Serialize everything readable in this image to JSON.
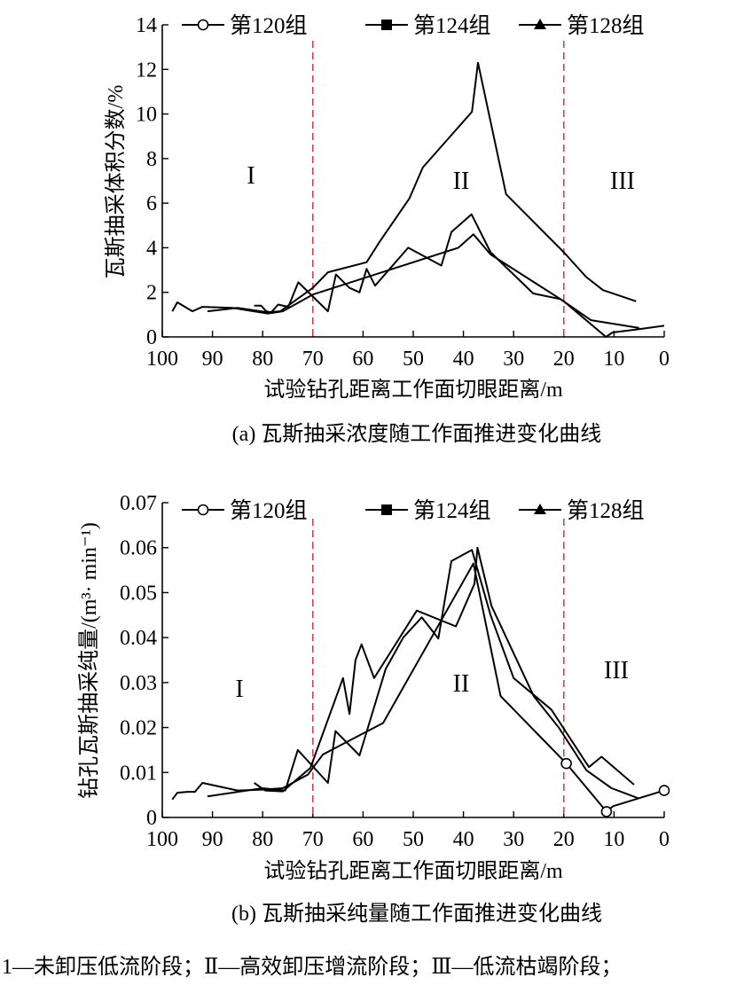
{
  "chart_data": [
    {
      "type": "line",
      "caption": "(a)  瓦斯抽采浓度随工作面推进变化曲线",
      "xlabel": "试验钻孔距离工作面切眼距离/m",
      "ylabel": "瓦斯抽采体积分数/%",
      "xlim": [
        100,
        0
      ],
      "ylim": [
        0,
        14
      ],
      "xticks": [
        "100",
        "90",
        "80",
        "70",
        "60",
        "50",
        "40",
        "30",
        "20",
        "10",
        "0"
      ],
      "yticks": [
        "0",
        "2",
        "4",
        "6",
        "8",
        "10",
        "12",
        "14"
      ],
      "grid": false,
      "legend_position": "top",
      "stage_lines_x": [
        70,
        20
      ],
      "stage_line_color": "#d9363e",
      "stage_labels": [
        "I",
        "II",
        "III"
      ],
      "series": [
        {
          "name": "第120组",
          "marker": "circle",
          "points": [
            [
              98,
              1.15
            ],
            [
              97,
              1.55
            ],
            [
              94,
              1.15
            ],
            [
              92,
              1.35
            ],
            [
              86,
              1.3
            ],
            [
              79,
              1.05
            ],
            [
              76,
              1.15
            ],
            [
              70,
              1.9
            ],
            [
              41,
              4.0
            ],
            [
              38,
              4.6
            ],
            [
              34.6,
              3.7
            ],
            [
              20,
              1.6
            ],
            [
              11.6,
              0
            ],
            [
              10.3,
              0.2
            ],
            [
              5,
              0.35
            ],
            [
              0,
              0.5
            ]
          ]
        },
        {
          "name": "第124组",
          "marker": "square",
          "points": [
            [
              91,
              1.15
            ],
            [
              85,
              1.3
            ],
            [
              79,
              1.1
            ],
            [
              76.5,
              1.15
            ],
            [
              70,
              2.2
            ],
            [
              67,
              2.9
            ],
            [
              59.3,
              3.35
            ],
            [
              56.6,
              4.3
            ],
            [
              50.8,
              6.2
            ],
            [
              48.1,
              7.6
            ],
            [
              38.3,
              10.1
            ],
            [
              37.1,
              12.3
            ],
            [
              31.5,
              6.4
            ],
            [
              20,
              3.8
            ],
            [
              15.6,
              2.7
            ],
            [
              12.2,
              2.1
            ],
            [
              5.6,
              1.6
            ]
          ]
        },
        {
          "name": "第128组",
          "marker": "triangle",
          "points": [
            [
              81.7,
              1.4
            ],
            [
              80.3,
              1.4
            ],
            [
              79.3,
              1.15
            ],
            [
              78.3,
              1.1
            ],
            [
              76.9,
              1.45
            ],
            [
              74.9,
              1.35
            ],
            [
              72.9,
              2.45
            ],
            [
              67,
              1.15
            ],
            [
              65.4,
              2.8
            ],
            [
              62.7,
              2.2
            ],
            [
              60.7,
              2.0
            ],
            [
              59.3,
              3.05
            ],
            [
              57.6,
              2.3
            ],
            [
              51,
              4.0
            ],
            [
              44.4,
              3.2
            ],
            [
              42.4,
              4.7
            ],
            [
              38.4,
              5.5
            ],
            [
              34.6,
              3.8
            ],
            [
              26.1,
              1.95
            ],
            [
              20.7,
              1.7
            ],
            [
              14.6,
              0.75
            ],
            [
              5,
              0.4
            ]
          ]
        }
      ]
    },
    {
      "type": "line",
      "caption": "(b) 瓦斯抽采纯量随工作面推进变化曲线",
      "xlabel": "试验钻孔距离工作面切眼距离/m",
      "ylabel": "钻孔瓦斯抽采纯量/(m³· min⁻¹)",
      "xlim": [
        100,
        0
      ],
      "ylim": [
        0,
        0.07
      ],
      "xticks": [
        "100",
        "90",
        "80",
        "70",
        "60",
        "50",
        "40",
        "30",
        "20",
        "10",
        "0"
      ],
      "yticks": [
        "0",
        "0.01",
        "0.02",
        "0.03",
        "0.04",
        "0.05",
        "0.06",
        "0.07"
      ],
      "grid": false,
      "legend_position": "top",
      "stage_lines_x": [
        70,
        20
      ],
      "stage_line_color": "#d9363e",
      "stage_labels": [
        "I",
        "II",
        "III"
      ],
      "series": [
        {
          "name": "第120组",
          "marker": "circle",
          "marked_x": [
            19.5,
            11.5,
            0
          ],
          "points": [
            [
              98,
              0.004
            ],
            [
              97,
              0.0055
            ],
            [
              95,
              0.0057
            ],
            [
              93.5,
              0.0057
            ],
            [
              92,
              0.0077
            ],
            [
              85,
              0.006
            ],
            [
              80,
              0.0062
            ],
            [
              76,
              0.0065
            ],
            [
              71,
              0.0095
            ],
            [
              68,
              0.014
            ],
            [
              56,
              0.021
            ],
            [
              38,
              0.0565
            ],
            [
              32.6,
              0.027
            ],
            [
              19.5,
              0.012
            ],
            [
              11.5,
              0.0013
            ],
            [
              10.2,
              0.0025
            ],
            [
              0,
              0.006
            ]
          ]
        },
        {
          "name": "第124组",
          "marker": "square",
          "points": [
            [
              91,
              0.0047
            ],
            [
              80,
              0.0065
            ],
            [
              75.5,
              0.006
            ],
            [
              73,
              0.015
            ],
            [
              67,
              0.0077
            ],
            [
              65.5,
              0.0192
            ],
            [
              60.7,
              0.0138
            ],
            [
              55.5,
              0.033
            ],
            [
              52,
              0.04
            ],
            [
              48.3,
              0.0445
            ],
            [
              45,
              0.0398
            ],
            [
              42.4,
              0.057
            ],
            [
              38.3,
              0.0595
            ],
            [
              34.6,
              0.045
            ],
            [
              30,
              0.031
            ],
            [
              22.5,
              0.024
            ],
            [
              15,
              0.0112
            ],
            [
              12.5,
              0.0135
            ],
            [
              6,
              0.0073
            ]
          ]
        },
        {
          "name": "第128组",
          "marker": "triangle",
          "points": [
            [
              81.7,
              0.0077
            ],
            [
              79.5,
              0.006
            ],
            [
              76,
              0.0058
            ],
            [
              70.5,
              0.011
            ],
            [
              64,
              0.031
            ],
            [
              62.7,
              0.023
            ],
            [
              61.5,
              0.035
            ],
            [
              60.3,
              0.0385
            ],
            [
              57.8,
              0.031
            ],
            [
              49.3,
              0.046
            ],
            [
              41.5,
              0.0425
            ],
            [
              37.8,
              0.052
            ],
            [
              37.2,
              0.06
            ],
            [
              34.4,
              0.047
            ],
            [
              26,
              0.027
            ],
            [
              21,
              0.02
            ],
            [
              15.5,
              0.0105
            ],
            [
              10.5,
              0.0065
            ],
            [
              5,
              0.0042
            ]
          ]
        }
      ]
    }
  ],
  "footnote": "1—未卸压低流阶段；Ⅱ—高效卸压增流阶段；Ⅲ—低流枯竭阶段；"
}
